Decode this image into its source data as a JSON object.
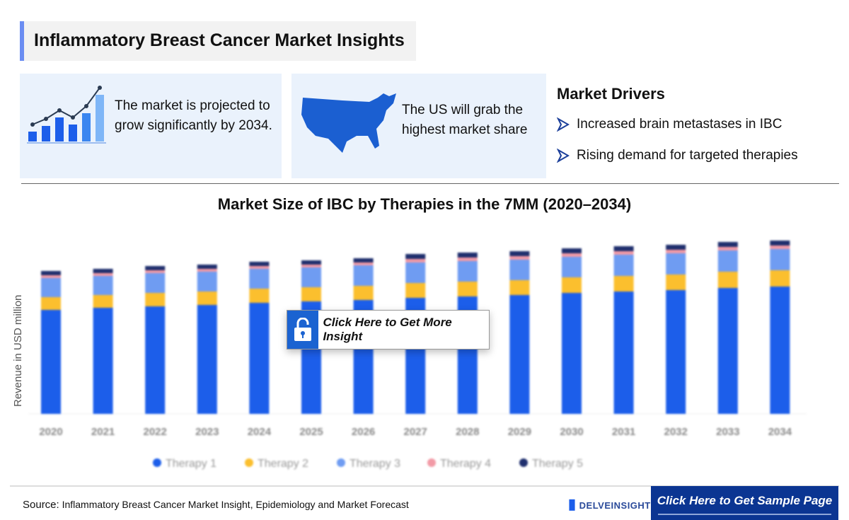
{
  "header": {
    "title": "Inflammatory Breast Cancer Market Insights"
  },
  "cards": [
    {
      "text": "The market is projected to grow significantly by 2034.",
      "icon": "growth-chart-icon"
    },
    {
      "text": "The US will grab the highest market share",
      "icon": "us-map-icon"
    }
  ],
  "drivers": {
    "title": "Market Drivers",
    "items": [
      "Increased brain metastases in IBC",
      "Rising demand for targeted therapies"
    ]
  },
  "cta": {
    "label": "Click Here to Get More Insight"
  },
  "footer": {
    "source_label": "Source:",
    "source_text": "Inflammatory Breast Cancer Market Insight, Epidemiology and Market Forecast",
    "logo": "DELVEINSIGHT",
    "sample_label": "Click Here to Get Sample Page"
  },
  "colors": {
    "therapy1": "#1c5eea",
    "therapy2": "#fbbf2e",
    "therapy3": "#6f9cf2",
    "therapy4": "#f29aa6",
    "therapy5": "#1f2f6e",
    "accent": "#0b3592"
  },
  "chart_data": {
    "type": "bar",
    "stacked": true,
    "title": "Market Size of IBC by Therapies in the 7MM (2020–2034)",
    "xlabel": "",
    "ylabel": "Revenue in USD million",
    "categories": [
      "2020",
      "2021",
      "2022",
      "2023",
      "2024",
      "2025",
      "2026",
      "2027",
      "2028",
      "2029",
      "2030",
      "2031",
      "2032",
      "2033",
      "2034"
    ],
    "series": [
      {
        "name": "Therapy 1",
        "values": [
          147,
          150,
          152,
          154,
          157,
          159,
          161,
          164,
          166,
          168,
          171,
          173,
          175,
          178,
          180
        ]
      },
      {
        "name": "Therapy 2",
        "values": [
          18,
          18,
          19,
          19,
          20,
          20,
          20,
          21,
          21,
          21,
          22,
          22,
          22,
          23,
          23
        ]
      },
      {
        "name": "Therapy 3",
        "values": [
          27,
          27,
          28,
          28,
          28,
          28,
          29,
          29,
          29,
          29,
          29,
          30,
          30,
          30,
          30
        ]
      },
      {
        "name": "Therapy 4",
        "values": [
          4,
          4,
          4,
          4,
          4,
          4,
          4,
          5,
          5,
          5,
          5,
          5,
          5,
          5,
          5
        ]
      },
      {
        "name": "Therapy 5",
        "values": [
          6,
          6,
          6,
          6,
          6,
          6,
          6,
          7,
          7,
          7,
          7,
          7,
          7,
          7,
          7
        ]
      }
    ],
    "legend": "bottom",
    "grid": false
  }
}
